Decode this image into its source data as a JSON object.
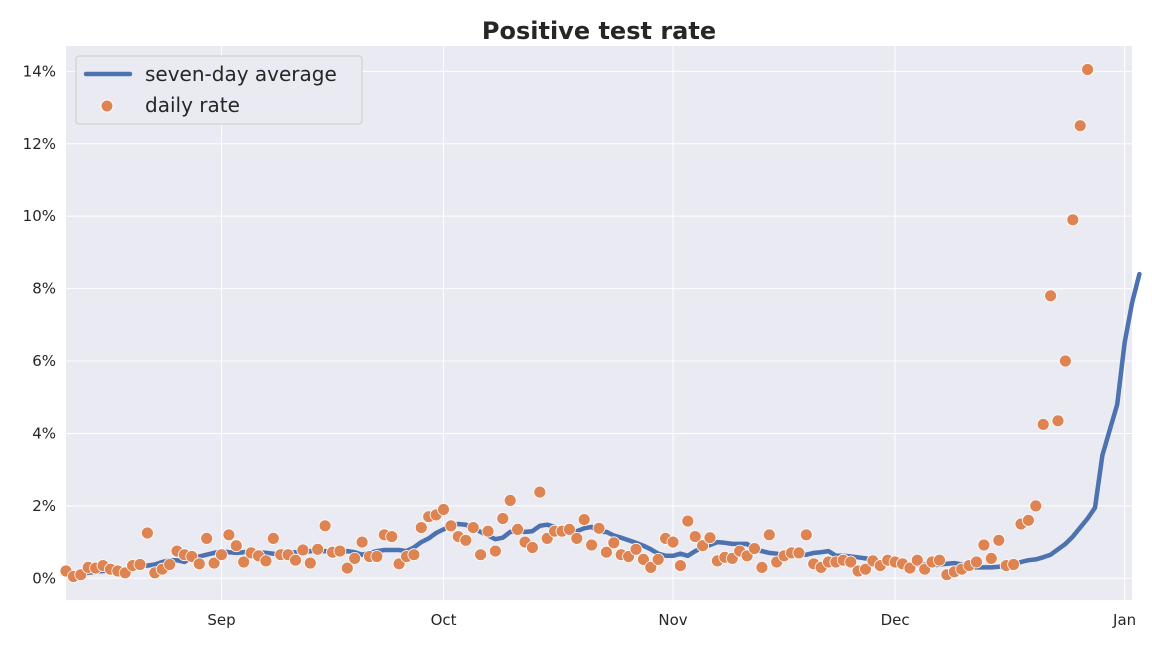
{
  "chart_data": {
    "type": "line",
    "title": "Positive test rate",
    "xlabel": "",
    "ylabel": "",
    "x_range": [
      "2021-08-11",
      "2022-01-02"
    ],
    "ylim": [
      -0.6,
      14.7
    ],
    "y_ticks": [
      {
        "value": 0,
        "label": "0%"
      },
      {
        "value": 2,
        "label": "2%"
      },
      {
        "value": 4,
        "label": "4%"
      },
      {
        "value": 6,
        "label": "6%"
      },
      {
        "value": 8,
        "label": "8%"
      },
      {
        "value": 10,
        "label": "10%"
      },
      {
        "value": 12,
        "label": "12%"
      },
      {
        "value": 14,
        "label": "14%"
      }
    ],
    "x_ticks": [
      {
        "date": "2021-09-01",
        "label": "Sep"
      },
      {
        "date": "2021-10-01",
        "label": "Oct"
      },
      {
        "date": "2021-11-01",
        "label": "Nov"
      },
      {
        "date": "2021-12-01",
        "label": "Dec"
      },
      {
        "date": "2022-01-01",
        "label": "Jan"
      }
    ],
    "grid": true,
    "legend_position": "top-left",
    "start_date": "2021-08-11",
    "colors": {
      "background": "#eaeaf2",
      "grid": "#ffffff",
      "line": "#4c72b0",
      "points": "#dd8452"
    },
    "series": [
      {
        "name": "seven-day average",
        "kind": "line",
        "values": [
          0.12,
          0.1,
          0.12,
          0.15,
          0.18,
          0.2,
          0.2,
          0.22,
          0.25,
          0.3,
          0.35,
          0.35,
          0.38,
          0.45,
          0.5,
          0.5,
          0.45,
          0.58,
          0.6,
          0.65,
          0.7,
          0.75,
          0.72,
          0.7,
          0.72,
          0.75,
          0.72,
          0.7,
          0.68,
          0.68,
          0.7,
          0.72,
          0.72,
          0.75,
          0.75,
          0.75,
          0.72,
          0.7,
          0.75,
          0.72,
          0.65,
          0.7,
          0.75,
          0.78,
          0.78,
          0.78,
          0.75,
          0.85,
          1.0,
          1.1,
          1.25,
          1.35,
          1.45,
          1.5,
          1.48,
          1.38,
          1.28,
          1.18,
          1.08,
          1.12,
          1.28,
          1.3,
          1.28,
          1.3,
          1.45,
          1.48,
          1.42,
          1.35,
          1.32,
          1.3,
          1.38,
          1.42,
          1.28,
          1.28,
          1.18,
          1.12,
          1.05,
          0.98,
          0.9,
          0.8,
          0.68,
          0.62,
          0.62,
          0.68,
          0.62,
          0.75,
          0.85,
          0.92,
          1.0,
          0.98,
          0.95,
          0.95,
          0.95,
          0.78,
          0.75,
          0.7,
          0.68,
          0.62,
          0.68,
          0.65,
          0.65,
          0.7,
          0.72,
          0.75,
          0.62,
          0.62,
          0.6,
          0.58,
          0.55,
          0.52,
          0.42,
          0.42,
          0.4,
          0.4,
          0.38,
          0.38,
          0.38,
          0.35,
          0.38,
          0.4,
          0.42,
          0.38,
          0.32,
          0.3,
          0.3,
          0.3,
          0.32,
          0.35,
          0.38,
          0.45,
          0.5,
          0.52,
          0.58,
          0.65,
          0.8,
          0.95,
          1.15,
          1.4,
          1.65,
          1.95,
          3.4,
          4.1,
          4.8,
          6.5,
          7.6,
          8.4
        ]
      },
      {
        "name": "daily rate",
        "kind": "scatter",
        "values": [
          0.2,
          0.05,
          0.1,
          0.3,
          0.28,
          0.35,
          0.25,
          0.2,
          0.15,
          0.35,
          0.38,
          1.25,
          0.15,
          0.25,
          0.38,
          0.75,
          0.65,
          0.6,
          0.4,
          1.1,
          0.42,
          0.65,
          1.2,
          0.9,
          0.45,
          0.7,
          0.62,
          0.48,
          1.1,
          0.65,
          0.65,
          0.5,
          0.78,
          0.42,
          0.8,
          1.45,
          0.72,
          0.75,
          0.28,
          0.55,
          1.0,
          0.6,
          0.6,
          1.2,
          1.15,
          0.4,
          0.6,
          0.65,
          1.4,
          1.7,
          1.75,
          1.9,
          1.45,
          1.15,
          1.05,
          1.4,
          0.65,
          1.3,
          0.75,
          1.65,
          2.15,
          1.35,
          1.0,
          0.85,
          2.38,
          1.1,
          1.3,
          1.3,
          1.35,
          1.1,
          1.62,
          0.92,
          1.38,
          0.72,
          0.98,
          0.65,
          0.6,
          0.8,
          0.52,
          0.3,
          0.52,
          1.1,
          1.0,
          0.35,
          1.58,
          1.15,
          0.9,
          1.12,
          0.48,
          0.58,
          0.55,
          0.75,
          0.62,
          0.82,
          0.3,
          1.2,
          0.45,
          0.62,
          0.7,
          0.7,
          1.2,
          0.4,
          0.3,
          0.45,
          0.45,
          0.5,
          0.45,
          0.2,
          0.25,
          0.48,
          0.35,
          0.5,
          0.45,
          0.4,
          0.28,
          0.5,
          0.25,
          0.45,
          0.5,
          0.1,
          0.18,
          0.25,
          0.35,
          0.45,
          0.92,
          0.55,
          1.05,
          0.35,
          0.38,
          1.5,
          1.6,
          2.0,
          4.25,
          7.8,
          4.35,
          6.0,
          9.9,
          12.5,
          14.05
        ]
      }
    ]
  }
}
